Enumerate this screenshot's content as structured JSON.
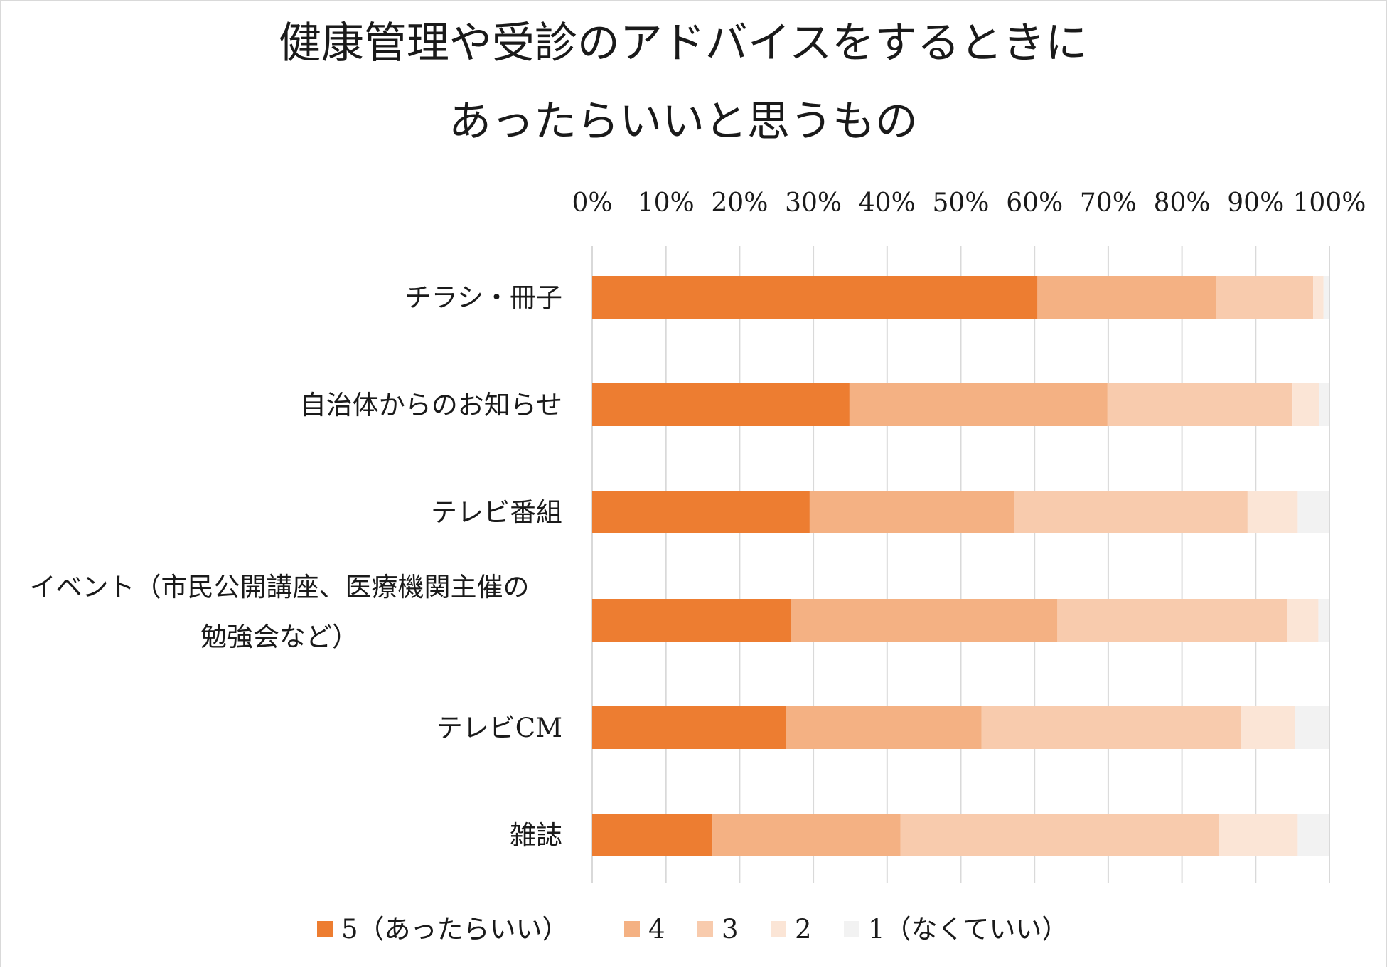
{
  "chart_data": {
    "type": "bar",
    "orientation": "horizontal",
    "stacked": "percent",
    "title": [
      "健康管理や受診のアドバイスをするときに",
      "あったらいいと思うもの"
    ],
    "xlim": [
      0,
      100
    ],
    "x_ticks": [
      "0%",
      "10%",
      "20%",
      "30%",
      "40%",
      "50%",
      "60%",
      "70%",
      "80%",
      "90%",
      "100%"
    ],
    "x_axis_position": "top",
    "grid": "vertical",
    "legend_position": "bottom",
    "categories": [
      [
        "チラシ・冊子"
      ],
      [
        "自治体からのお知らせ"
      ],
      [
        "テレビ番組"
      ],
      [
        "イベント（市民公開講座、医療機関主催の",
        "勉強会など）"
      ],
      [
        "テレビCM"
      ],
      [
        "雑誌"
      ]
    ],
    "series": [
      {
        "name": "5（あったらいい）",
        "color": "#ED7D31",
        "values": [
          60.4,
          34.9,
          29.5,
          27.0,
          26.3,
          16.3
        ]
      },
      {
        "name": "4",
        "color": "#F4B183",
        "values": [
          24.2,
          35.0,
          27.7,
          36.1,
          26.5,
          25.5
        ]
      },
      {
        "name": "3",
        "color": "#F8CBAD",
        "values": [
          13.2,
          25.1,
          31.7,
          31.2,
          35.2,
          43.2
        ]
      },
      {
        "name": "2",
        "color": "#FBE5D6",
        "values": [
          1.4,
          3.6,
          6.8,
          4.2,
          7.3,
          10.7
        ]
      },
      {
        "name": "1（なくていい）",
        "color": "#F2F2F2",
        "values": [
          0.8,
          1.4,
          4.3,
          1.5,
          4.7,
          4.3
        ]
      }
    ]
  }
}
